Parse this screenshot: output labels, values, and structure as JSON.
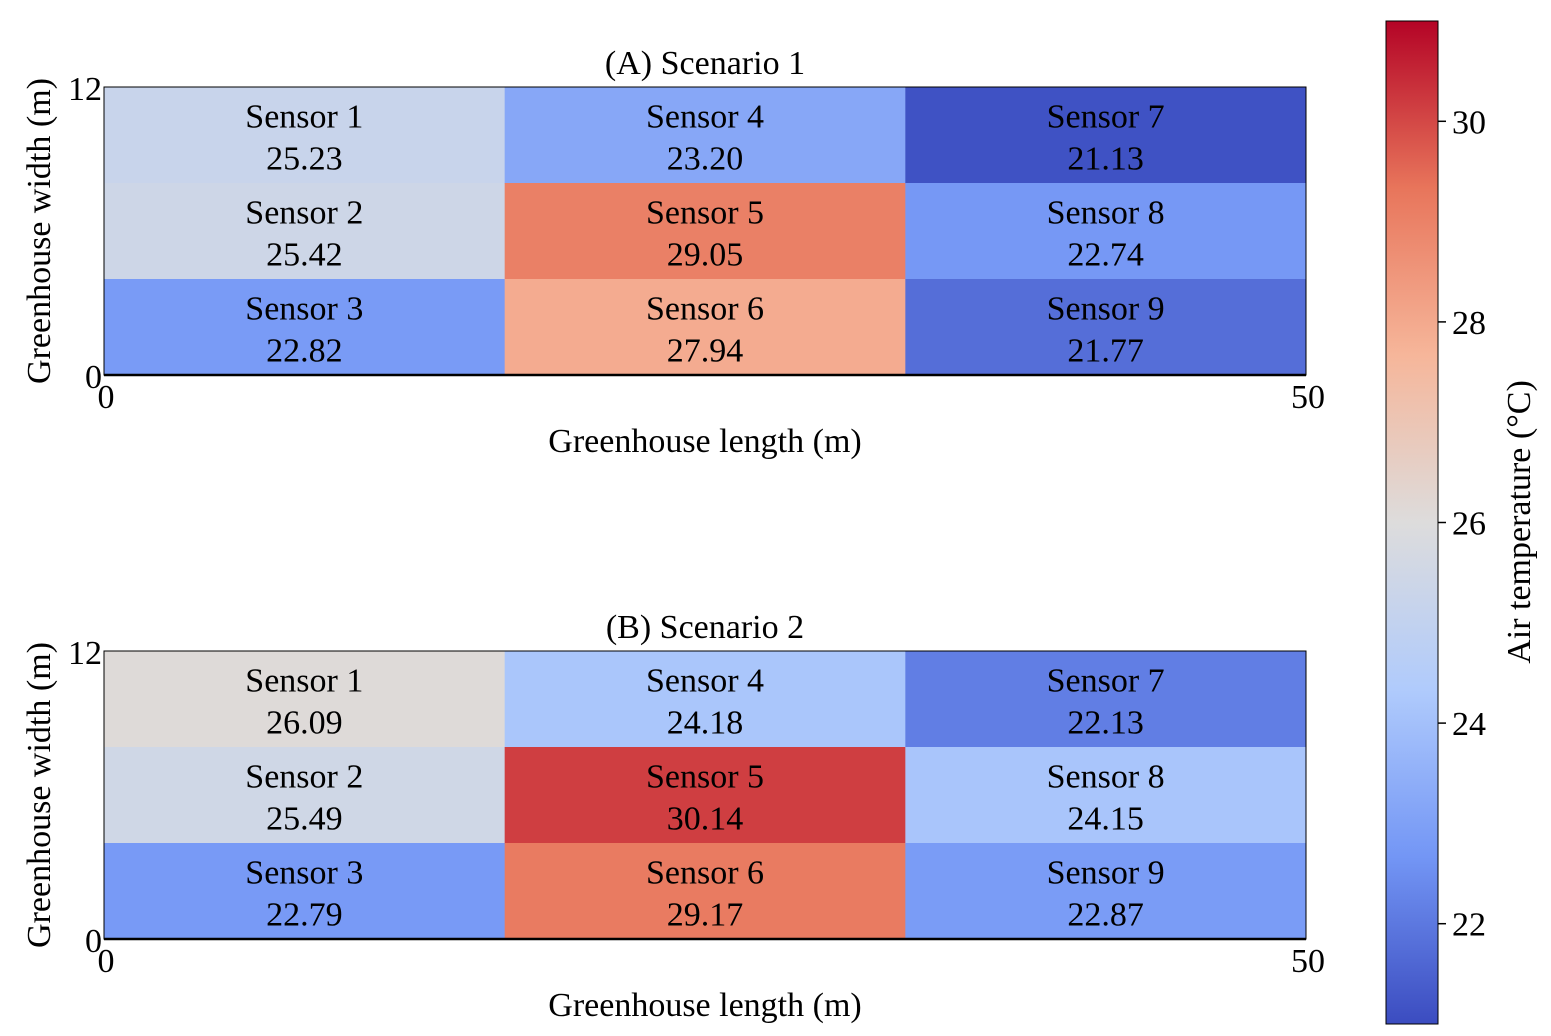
{
  "chart_data": [
    {
      "type": "heatmap",
      "title": "(A) Scenario 1",
      "xlabel": "Greenhouse length (m)",
      "ylabel": "Greenhouse width (m)",
      "xlim": [
        0,
        50
      ],
      "ylim": [
        0,
        12
      ],
      "xticks": [
        "0",
        "50"
      ],
      "yticks": [
        "0",
        "12"
      ],
      "grid": false,
      "rows": 3,
      "cols": 3,
      "cells": [
        {
          "label": "Sensor 1",
          "value": "25.23",
          "row": 0,
          "col": 0
        },
        {
          "label": "Sensor 2",
          "value": "25.42",
          "row": 1,
          "col": 0
        },
        {
          "label": "Sensor 3",
          "value": "22.82",
          "row": 2,
          "col": 0
        },
        {
          "label": "Sensor 4",
          "value": "23.20",
          "row": 0,
          "col": 1
        },
        {
          "label": "Sensor 5",
          "value": "29.05",
          "row": 1,
          "col": 1
        },
        {
          "label": "Sensor 6",
          "value": "27.94",
          "row": 2,
          "col": 1
        },
        {
          "label": "Sensor 7",
          "value": "21.13",
          "row": 0,
          "col": 2
        },
        {
          "label": "Sensor 8",
          "value": "22.74",
          "row": 1,
          "col": 2
        },
        {
          "label": "Sensor 9",
          "value": "21.77",
          "row": 2,
          "col": 2
        }
      ]
    },
    {
      "type": "heatmap",
      "title": "(B) Scenario 2",
      "xlabel": "Greenhouse length (m)",
      "ylabel": "Greenhouse width (m)",
      "xlim": [
        0,
        50
      ],
      "ylim": [
        0,
        12
      ],
      "xticks": [
        "0",
        "50"
      ],
      "yticks": [
        "0",
        "12"
      ],
      "grid": false,
      "rows": 3,
      "cols": 3,
      "cells": [
        {
          "label": "Sensor 1",
          "value": "26.09",
          "row": 0,
          "col": 0
        },
        {
          "label": "Sensor 2",
          "value": "25.49",
          "row": 1,
          "col": 0
        },
        {
          "label": "Sensor 3",
          "value": "22.79",
          "row": 2,
          "col": 0
        },
        {
          "label": "Sensor 4",
          "value": "24.18",
          "row": 0,
          "col": 1
        },
        {
          "label": "Sensor 5",
          "value": "30.14",
          "row": 1,
          "col": 1
        },
        {
          "label": "Sensor 6",
          "value": "29.17",
          "row": 2,
          "col": 1
        },
        {
          "label": "Sensor 7",
          "value": "22.13",
          "row": 0,
          "col": 2
        },
        {
          "label": "Sensor 8",
          "value": "24.15",
          "row": 1,
          "col": 2
        },
        {
          "label": "Sensor 9",
          "value": "22.87",
          "row": 2,
          "col": 2
        }
      ]
    }
  ],
  "colorbar": {
    "label": "Air temperature (°C)",
    "range": [
      21,
      31
    ],
    "ticks": [
      "22",
      "24",
      "26",
      "28",
      "30"
    ],
    "colormap": "coolwarm",
    "colors": [
      "#3b4cc0",
      "#7396f5",
      "#b0cbfc",
      "#dddcdc",
      "#f6b69a",
      "#e8755b",
      "#b40426"
    ]
  }
}
